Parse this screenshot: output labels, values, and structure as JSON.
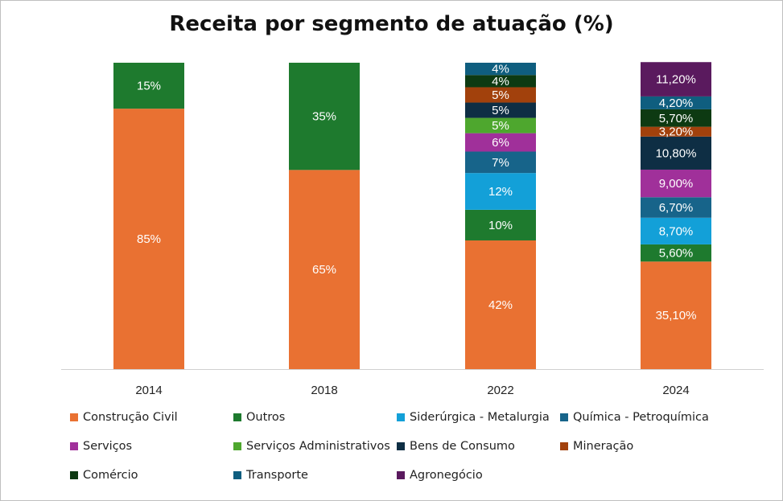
{
  "chart_data": {
    "type": "bar",
    "stacked": true,
    "title": "Receita por segmento de atuação (%)",
    "xlabel": "",
    "ylabel": "",
    "ylim": [
      0,
      100
    ],
    "grid": false,
    "legend_position": "bottom",
    "categories": [
      "2014",
      "2018",
      "2022",
      "2024"
    ],
    "series": [
      {
        "name": "Construção Civil",
        "color": "#E97132",
        "values": [
          85,
          65,
          42,
          35.1
        ],
        "labels": [
          "85%",
          "65%",
          "42%",
          "35,10%"
        ]
      },
      {
        "name": "Outros",
        "color": "#1E7A2E",
        "values": [
          15,
          35,
          10,
          5.6
        ],
        "labels": [
          "15%",
          "35%",
          "10%",
          "5,60%"
        ]
      },
      {
        "name": "Siderúrgica - Metalurgia",
        "color": "#13A0D8",
        "values": [
          null,
          null,
          12,
          8.7
        ],
        "labels": [
          "",
          "",
          "12%",
          "8,70%"
        ]
      },
      {
        "name": "Química - Petroquímica",
        "color": "#17648A",
        "values": [
          null,
          null,
          7,
          6.7
        ],
        "labels": [
          "",
          "",
          "7%",
          "6,70%"
        ]
      },
      {
        "name": "Serviços",
        "color": "#A0309A",
        "values": [
          null,
          null,
          6,
          9.0
        ],
        "labels": [
          "",
          "",
          "6%",
          "9,00%"
        ]
      },
      {
        "name": "Serviços Administrativos",
        "color": "#4EA72E",
        "values": [
          null,
          null,
          5,
          null
        ],
        "labels": [
          "",
          "",
          "5%",
          ""
        ]
      },
      {
        "name": "Bens de Consumo",
        "color": "#0E2E44",
        "values": [
          null,
          null,
          5,
          10.8
        ],
        "labels": [
          "",
          "",
          "5%",
          "10,80%"
        ]
      },
      {
        "name": "Mineração",
        "color": "#A2410C",
        "values": [
          null,
          null,
          5,
          3.2
        ],
        "labels": [
          "",
          "",
          "5%",
          "3,20%"
        ]
      },
      {
        "name": "Comércio",
        "color": "#0D3A12",
        "values": [
          null,
          null,
          4,
          5.7
        ],
        "labels": [
          "",
          "",
          "4%",
          "5,70%"
        ]
      },
      {
        "name": "Transporte",
        "color": "#0F5E7F",
        "values": [
          null,
          null,
          4,
          4.2
        ],
        "labels": [
          "",
          "",
          "4%",
          "4,20%"
        ]
      },
      {
        "name": "Agronegócio",
        "color": "#5A1A5E",
        "values": [
          null,
          null,
          null,
          11.2
        ],
        "labels": [
          "",
          "",
          "",
          "11,20%"
        ]
      }
    ]
  }
}
